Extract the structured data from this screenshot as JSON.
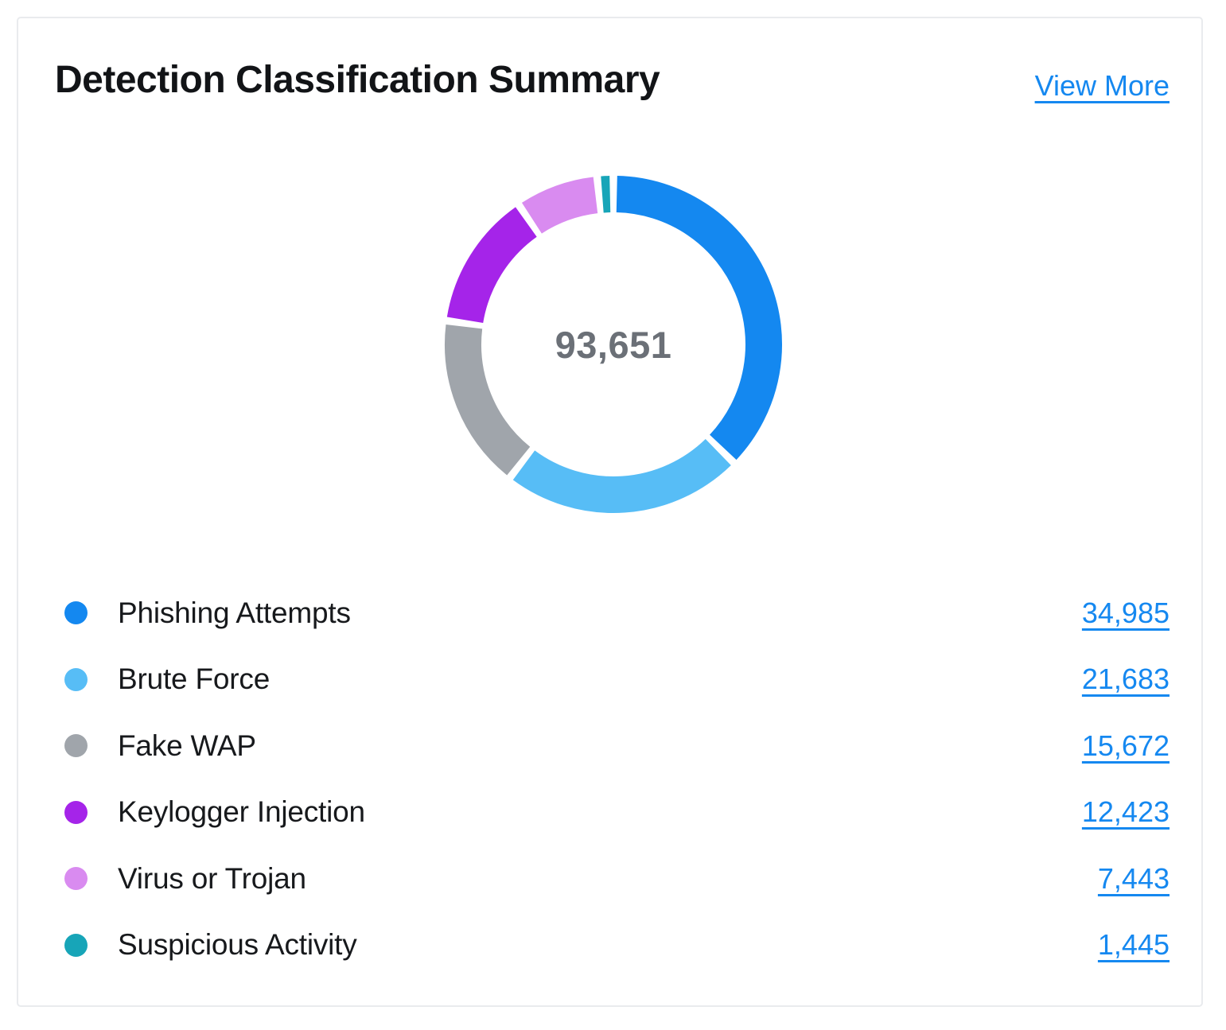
{
  "card": {
    "title": "Detection Classification Summary",
    "view_more_label": "View More"
  },
  "colors": {
    "link_blue": "#1588F0",
    "center_text": "#6B7077",
    "title_text": "#121417",
    "label_text": "#17191C",
    "card_border": "#E9EBEE"
  },
  "chart_data": {
    "type": "donut",
    "title": "Detection Classification Summary",
    "center_total_label": "93,651",
    "center_total_value": 93651,
    "categories": [
      "Phishing Attempts",
      "Brute Force",
      "Fake WAP",
      "Keylogger Injection",
      "Virus or Trojan",
      "Suspicious Activity"
    ],
    "values": [
      34985,
      21683,
      15672,
      12423,
      7443,
      1445
    ],
    "value_labels": [
      "34,985",
      "21,683",
      "15,672",
      "12,423",
      "7,443",
      "1,445"
    ],
    "colors": [
      "#1488F0",
      "#57BDF6",
      "#A0A5AB",
      "#A524E9",
      "#D98BF0",
      "#17A5B8"
    ],
    "legend_position": "bottom",
    "start_angle_deg": 0,
    "clockwise": true,
    "pad_angle_deg": 2.6,
    "ring_mid_radius": 189,
    "ring_thickness": 46
  }
}
